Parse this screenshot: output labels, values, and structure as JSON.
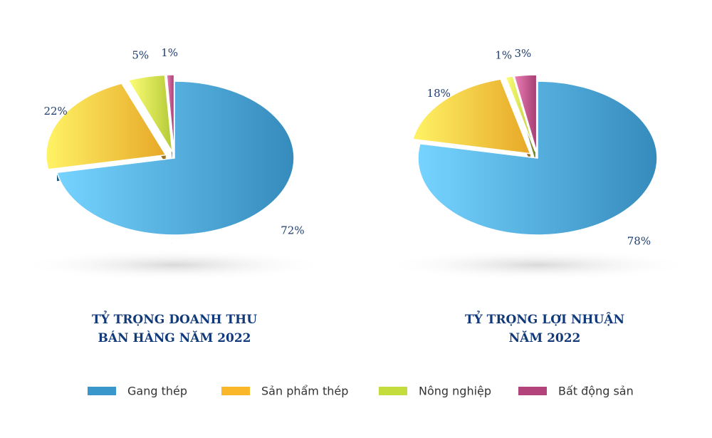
{
  "chart_data": [
    {
      "type": "pie",
      "title": "TỶ TRỌNG DOANH THU\nBÁN HÀNG NĂM 2022",
      "categories": [
        "Gang thép",
        "Sản phẩm thép",
        "Nông nghiệp",
        "Bất động sản"
      ],
      "values": [
        72,
        22,
        5,
        1
      ],
      "value_labels": [
        "72%",
        "22%",
        "5%",
        "1%"
      ],
      "colors": [
        "#3a97cc",
        "#fbb72a",
        "#c4dc3c",
        "#b2437b"
      ]
    },
    {
      "type": "pie",
      "title": "TỶ TRỌNG LỢI NHUẬN\nNĂM 2022",
      "categories": [
        "Gang thép",
        "Sản phẩm thép",
        "Nông nghiệp",
        "Bất động sản"
      ],
      "values": [
        78,
        18,
        1,
        3
      ],
      "value_labels": [
        "78%",
        "18%",
        "1%",
        "3%"
      ],
      "colors": [
        "#3a97cc",
        "#fbb72a",
        "#c4dc3c",
        "#b2437b"
      ]
    }
  ]
}
